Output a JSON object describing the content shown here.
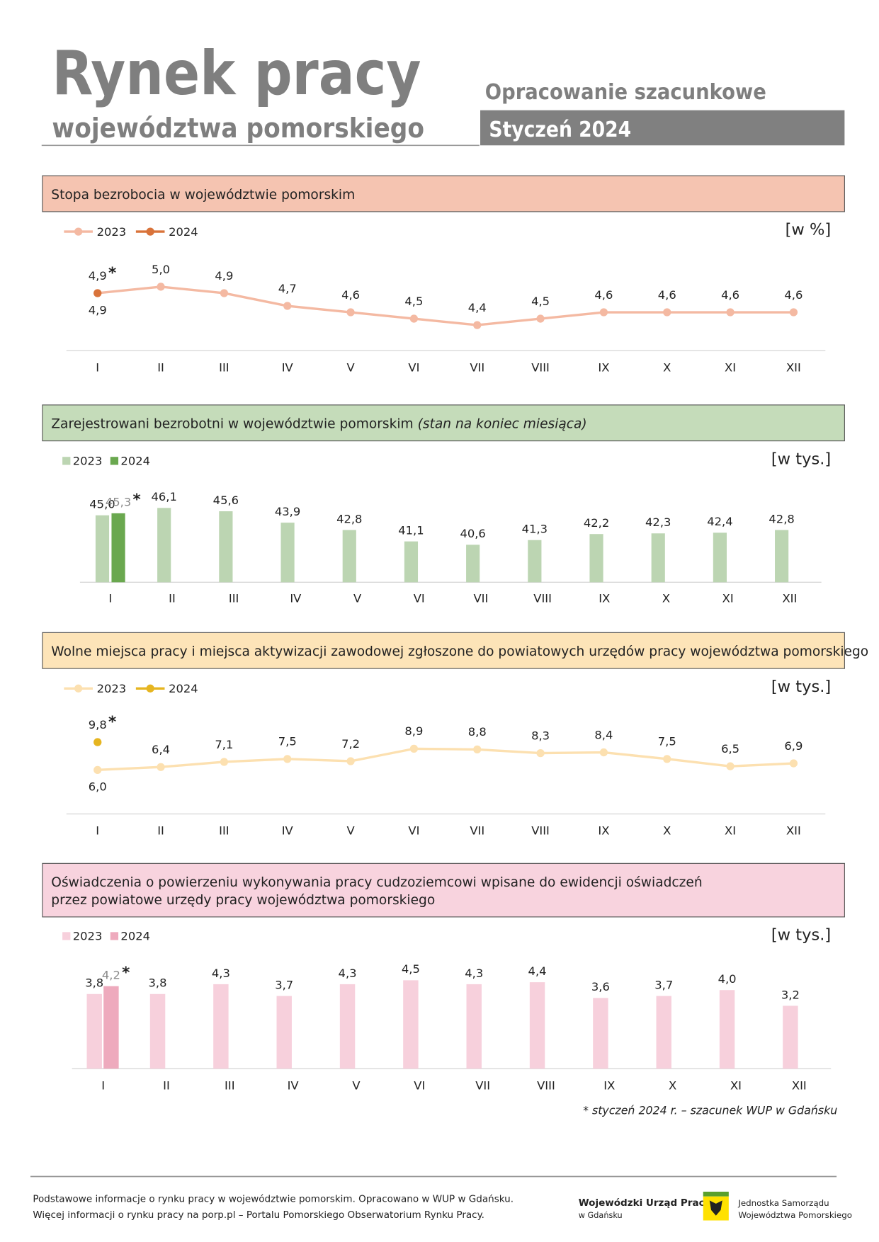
{
  "header": {
    "title": "Rynek pracy",
    "subtitle": "województwa pomorskiego",
    "tag": "Opracowanie szacunkowe",
    "period": "Styczeń 2024"
  },
  "marker": "*",
  "chart_data": [
    {
      "type": "line",
      "title": [
        "Stopa bezrobocia w województwie pomorskim"
      ],
      "unit": "[w %]",
      "categories": [
        "I",
        "II",
        "III",
        "IV",
        "V",
        "VI",
        "VII",
        "VIII",
        "IX",
        "X",
        "XI",
        "XII"
      ],
      "ylim": [
        4,
        5.4
      ],
      "series": [
        {
          "name": "2023",
          "color": "#f4b9a2",
          "values": [
            4.9,
            5.0,
            4.9,
            4.7,
            4.6,
            4.5,
            4.4,
            4.5,
            4.6,
            4.6,
            4.6,
            4.6
          ],
          "value_labels": [
            "4,9",
            "5,0",
            "4,9",
            "4,7",
            "4,6",
            "4,5",
            "4,4",
            "4,5",
            "4,6",
            "4,6",
            "4,6",
            "4,6"
          ]
        },
        {
          "name": "2024",
          "color": "#d9733a",
          "values": [
            4.9,
            null,
            null,
            null,
            null,
            null,
            null,
            null,
            null,
            null,
            null,
            null
          ],
          "value_labels": [
            "4,9",
            null,
            null,
            null,
            null,
            null,
            null,
            null,
            null,
            null,
            null,
            null
          ]
        }
      ]
    },
    {
      "type": "bar",
      "title": [
        "Zarejestrowani bezrobotni w województwie pomorskim"
      ],
      "subtitle": "(stan na koniec miesiąca)",
      "unit": "[w tys.]",
      "categories": [
        "I",
        "II",
        "III",
        "IV",
        "V",
        "VI",
        "VII",
        "VIII",
        "IX",
        "X",
        "XI",
        "XII"
      ],
      "ylim": [
        35,
        48
      ],
      "series": [
        {
          "name": "2023",
          "color": "#bcd5b2",
          "values": [
            45.0,
            46.1,
            45.6,
            43.9,
            42.8,
            41.1,
            40.6,
            41.3,
            42.2,
            42.3,
            42.4,
            42.8
          ],
          "value_labels": [
            "45,0",
            "46,1",
            "45,6",
            "43,9",
            "42,8",
            "41,1",
            "40,6",
            "41,3",
            "42,2",
            "42,3",
            "42,4",
            "42,8"
          ]
        },
        {
          "name": "2024",
          "color": "#6aa84f",
          "values": [
            45.3,
            null,
            null,
            null,
            null,
            null,
            null,
            null,
            null,
            null,
            null,
            null
          ],
          "value_labels": [
            "45,3",
            null,
            null,
            null,
            null,
            null,
            null,
            null,
            null,
            null,
            null,
            null
          ]
        }
      ]
    },
    {
      "type": "line",
      "title": [
        "Wolne miejsca pracy i miejsca aktywizacji zawodowej zgłoszone do powiatowych urzędów pracy województwa pomorskiego"
      ],
      "unit": "[w tys.]",
      "categories": [
        "I",
        "II",
        "III",
        "IV",
        "V",
        "VI",
        "VII",
        "VIII",
        "IX",
        "X",
        "XI",
        "XII"
      ],
      "ylim": [
        0,
        12
      ],
      "series": [
        {
          "name": "2023",
          "color": "#fce0b0",
          "values": [
            6.0,
            6.4,
            7.1,
            7.5,
            7.2,
            8.9,
            8.8,
            8.3,
            8.4,
            7.5,
            6.5,
            6.9
          ],
          "value_labels": [
            "6,0",
            "6,4",
            "7,1",
            "7,5",
            "7,2",
            "8,9",
            "8,8",
            "8,3",
            "8,4",
            "7,5",
            "6,5",
            "6,9"
          ]
        },
        {
          "name": "2024",
          "color": "#e6b520",
          "values": [
            9.8,
            null,
            null,
            null,
            null,
            null,
            null,
            null,
            null,
            null,
            null,
            null
          ],
          "value_labels": [
            "9,8",
            null,
            null,
            null,
            null,
            null,
            null,
            null,
            null,
            null,
            null,
            null
          ]
        }
      ]
    },
    {
      "type": "bar",
      "title": [
        "Oświadczenia o powierzeniu wykonywania pracy cudzoziemcowi wpisane do ewidencji oświadczeń",
        "przez powiatowe urzędy pracy województwa pomorskiego"
      ],
      "unit": "[w tys.]",
      "categories": [
        "I",
        "II",
        "III",
        "IV",
        "V",
        "VI",
        "VII",
        "VIII",
        "IX",
        "X",
        "XI",
        "XII"
      ],
      "ylim": [
        0,
        5
      ],
      "series": [
        {
          "name": "2023",
          "color": "#f7d0dc",
          "values": [
            3.8,
            3.8,
            4.3,
            3.7,
            4.3,
            4.5,
            4.3,
            4.4,
            3.6,
            3.7,
            4.0,
            3.2
          ],
          "value_labels": [
            "3,8",
            "3,8",
            "4,3",
            "3,7",
            "4,3",
            "4,5",
            "4,3",
            "4,4",
            "3,6",
            "3,7",
            "4,0",
            "3,2"
          ]
        },
        {
          "name": "2024",
          "color": "#eeaabd",
          "values": [
            4.2,
            null,
            null,
            null,
            null,
            null,
            null,
            null,
            null,
            null,
            null,
            null
          ],
          "value_labels": [
            "4,2",
            null,
            null,
            null,
            null,
            null,
            null,
            null,
            null,
            null,
            null,
            null
          ]
        }
      ]
    }
  ],
  "note": "styczeń 2024 r. – szacunek WUP w Gdańsku",
  "footer": {
    "lines": [
      "Podstawowe informacje o rynku pracy w województwie pomorskim. Opracowano w WUP w Gdańsku.",
      "Więcej informacji o rynku pracy na porp.pl – Portalu Pomorskiego Obserwatorium Rynku Pracy."
    ],
    "org": [
      "Wojewódzki Urząd Pracy",
      "w Gdańsku"
    ],
    "authority": [
      "Jednostka Samorządu",
      "Województwa Pomorskiego"
    ]
  }
}
